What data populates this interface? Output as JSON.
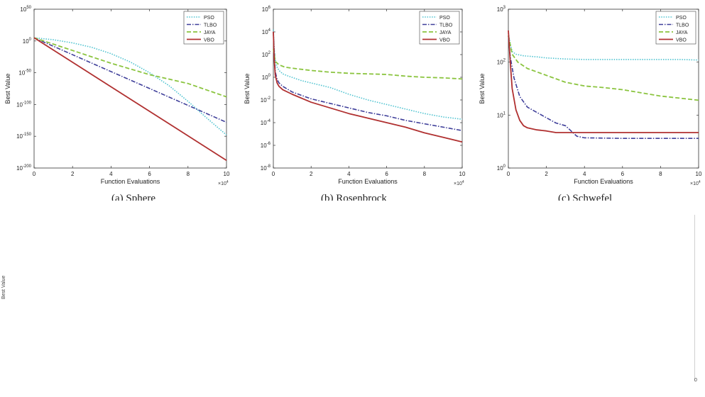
{
  "colors": {
    "PSO": "#4fc3d0",
    "TLBO": "#3f3f9a",
    "JAYA": "#8bc43f",
    "VBO": "#b03030"
  },
  "legend": [
    "PSO",
    "TLBO",
    "JAYA",
    "VBO"
  ],
  "chart_data": [
    {
      "type": "line",
      "title": "",
      "caption": "(a) Sphere",
      "xlabel": "Function Evaluations",
      "ylabel": "Best Value",
      "xlim": [
        0,
        10
      ],
      "x_multiplier_label": "×10",
      "x_multiplier_exp": "4",
      "yscale": "log",
      "ylim_exp": [
        -200,
        50
      ],
      "xticks": [
        "0",
        "2",
        "4",
        "6",
        "8",
        "10"
      ],
      "yticks": [
        {
          "exp": 50,
          "label": "10",
          "sup": "50"
        },
        {
          "exp": 0,
          "label": "10",
          "sup": "0"
        },
        {
          "exp": -50,
          "label": "10",
          "sup": "-50"
        },
        {
          "exp": -100,
          "label": "10",
          "sup": "-100"
        },
        {
          "exp": -150,
          "label": "10",
          "sup": "-150"
        },
        {
          "exp": -200,
          "label": "10",
          "sup": "-200"
        }
      ],
      "series": [
        {
          "name": "PSO",
          "x": [
            0,
            1,
            2,
            3,
            4,
            5,
            6,
            7,
            8,
            9,
            10
          ],
          "y_exp": [
            5,
            2,
            -3,
            -10,
            -20,
            -33,
            -50,
            -70,
            -95,
            -122,
            -148
          ]
        },
        {
          "name": "TLBO",
          "x": [
            0,
            10
          ],
          "y_exp": [
            5,
            -128
          ]
        },
        {
          "name": "JAYA",
          "x": [
            0,
            2,
            4,
            6,
            8,
            10
          ],
          "y_exp": [
            5,
            -15,
            -35,
            -53,
            -67,
            -88
          ]
        },
        {
          "name": "VBO",
          "x": [
            0,
            10
          ],
          "y_exp": [
            5,
            -188
          ]
        }
      ]
    },
    {
      "type": "line",
      "title": "",
      "caption": "(b) Rosenbrock",
      "xlabel": "Function Evaluations",
      "ylabel": "Best Value",
      "xlim": [
        0,
        10
      ],
      "x_multiplier_label": "×10",
      "x_multiplier_exp": "4",
      "yscale": "log",
      "ylim_exp": [
        -8,
        6
      ],
      "xticks": [
        "0",
        "2",
        "4",
        "6",
        "8",
        "10"
      ],
      "yticks": [
        {
          "exp": 6,
          "label": "10",
          "sup": "6"
        },
        {
          "exp": 4,
          "label": "10",
          "sup": "4"
        },
        {
          "exp": 2,
          "label": "10",
          "sup": "2"
        },
        {
          "exp": 0,
          "label": "10",
          "sup": "0"
        },
        {
          "exp": -2,
          "label": "10",
          "sup": "-2"
        },
        {
          "exp": -4,
          "label": "10",
          "sup": "-4"
        },
        {
          "exp": -6,
          "label": "10",
          "sup": "-6"
        },
        {
          "exp": -8,
          "label": "10",
          "sup": "-8"
        }
      ],
      "series": [
        {
          "name": "PSO",
          "x": [
            0,
            0.05,
            0.1,
            0.2,
            0.3,
            0.5,
            0.8,
            1.5,
            3,
            4,
            5,
            6,
            7,
            8,
            9,
            10
          ],
          "y_exp": [
            4.2,
            2.5,
            1.5,
            0.9,
            0.6,
            0.3,
            0.1,
            -0.3,
            -0.9,
            -1.5,
            -2.0,
            -2.4,
            -2.8,
            -3.2,
            -3.5,
            -3.7
          ]
        },
        {
          "name": "TLBO",
          "x": [
            0,
            0.05,
            0.1,
            0.2,
            0.3,
            0.5,
            1,
            2,
            3,
            4,
            5,
            6,
            7,
            8,
            9,
            10
          ],
          "y_exp": [
            4,
            2,
            0.5,
            -0.2,
            -0.5,
            -0.8,
            -1.3,
            -1.9,
            -2.3,
            -2.7,
            -3.1,
            -3.4,
            -3.8,
            -4.1,
            -4.4,
            -4.7
          ]
        },
        {
          "name": "JAYA",
          "x": [
            0,
            0.1,
            0.3,
            0.6,
            1,
            2,
            3,
            4,
            5,
            6,
            7,
            8,
            9,
            10
          ],
          "y_exp": [
            2.5,
            1.4,
            1.1,
            0.9,
            0.8,
            0.6,
            0.45,
            0.35,
            0.3,
            0.25,
            0.1,
            0.0,
            -0.05,
            -0.15
          ]
        },
        {
          "name": "VBO",
          "x": [
            0,
            0.05,
            0.1,
            0.2,
            0.3,
            0.5,
            1,
            2,
            3,
            4,
            5,
            6,
            7,
            8,
            9,
            10
          ],
          "y_exp": [
            4,
            1.5,
            0.2,
            -0.5,
            -0.8,
            -1.1,
            -1.5,
            -2.2,
            -2.7,
            -3.2,
            -3.6,
            -4.0,
            -4.4,
            -4.9,
            -5.3,
            -5.7
          ]
        }
      ]
    },
    {
      "type": "line",
      "title": "",
      "caption": "(c) Schwefel",
      "xlabel": "Function Evaluations",
      "ylabel": "Best Value",
      "xlim": [
        0,
        10
      ],
      "x_multiplier_label": "×10",
      "x_multiplier_exp": "4",
      "yscale": "log",
      "ylim_exp": [
        0,
        3
      ],
      "xticks": [
        "0",
        "2",
        "4",
        "6",
        "8",
        "10"
      ],
      "yticks": [
        {
          "exp": 3,
          "label": "10",
          "sup": "3"
        },
        {
          "exp": 2,
          "label": "10",
          "sup": "2"
        },
        {
          "exp": 1,
          "label": "10",
          "sup": "1"
        },
        {
          "exp": 0,
          "label": "10",
          "sup": "0"
        }
      ],
      "series": [
        {
          "name": "PSO",
          "x": [
            0,
            0.1,
            0.2,
            0.4,
            0.8,
            1.5,
            2,
            3,
            4,
            5,
            6,
            7,
            8,
            9,
            10
          ],
          "y_exp": [
            2.55,
            2.35,
            2.2,
            2.15,
            2.12,
            2.1,
            2.08,
            2.06,
            2.05,
            2.05,
            2.05,
            2.05,
            2.05,
            2.05,
            2.04
          ]
        },
        {
          "name": "TLBO",
          "x": [
            0,
            0.1,
            0.3,
            0.6,
            1,
            1.5,
            2,
            2.5,
            3,
            3.3,
            3.6,
            4,
            6,
            8,
            10
          ],
          "y_exp": [
            2.5,
            2.1,
            1.7,
            1.35,
            1.15,
            1.05,
            0.95,
            0.85,
            0.8,
            0.7,
            0.6,
            0.57,
            0.56,
            0.56,
            0.56
          ]
        },
        {
          "name": "JAYA",
          "x": [
            0,
            0.2,
            0.5,
            1,
            2,
            3,
            4,
            5,
            6,
            7,
            8,
            9,
            10
          ],
          "y_exp": [
            2.5,
            2.15,
            2.0,
            1.88,
            1.75,
            1.62,
            1.55,
            1.52,
            1.48,
            1.42,
            1.36,
            1.32,
            1.28
          ]
        },
        {
          "name": "VBO",
          "x": [
            0,
            0.1,
            0.2,
            0.4,
            0.6,
            0.8,
            1,
            1.5,
            2,
            2.5,
            3,
            4,
            6,
            8,
            10
          ],
          "y_exp": [
            2.6,
            2.0,
            1.5,
            1.1,
            0.9,
            0.8,
            0.76,
            0.72,
            0.7,
            0.67,
            0.67,
            0.67,
            0.67,
            0.67,
            0.67
          ]
        }
      ]
    }
  ],
  "fragments": {
    "stray_ylabel": "Best Value",
    "stray_zero": "0"
  }
}
